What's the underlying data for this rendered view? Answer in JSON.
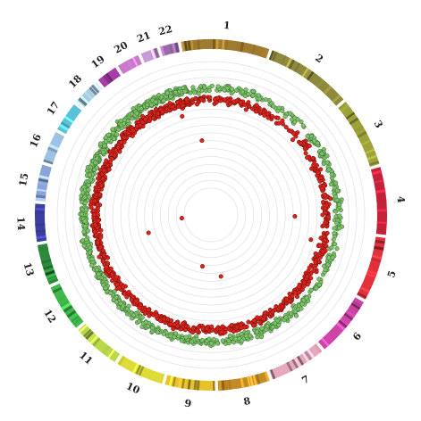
{
  "chart_data": {
    "type": "scatter",
    "title": "",
    "chromosomes": [
      {
        "label": "1",
        "size": 249,
        "color": "#a07a2e"
      },
      {
        "label": "2",
        "size": 243,
        "color": "#8e8a3c"
      },
      {
        "label": "3",
        "size": 198,
        "color": "#9ea23a"
      },
      {
        "label": "4",
        "size": 191,
        "color": "#c2223a"
      },
      {
        "label": "5",
        "size": 181,
        "color": "#e0313d"
      },
      {
        "label": "6",
        "size": 171,
        "color": "#cc44a6"
      },
      {
        "label": "7",
        "size": 159,
        "color": "#e6a9bb"
      },
      {
        "label": "8",
        "size": 146,
        "color": "#c48a24"
      },
      {
        "label": "9",
        "size": 141,
        "color": "#e8c22c"
      },
      {
        "label": "10",
        "size": 136,
        "color": "#dfdc3a"
      },
      {
        "label": "11",
        "size": 135,
        "color": "#b9d94a"
      },
      {
        "label": "12",
        "size": 133,
        "color": "#3fb94c"
      },
      {
        "label": "13",
        "size": 115,
        "color": "#2d8a3a"
      },
      {
        "label": "14",
        "size": 107,
        "color": "#3a3fa0"
      },
      {
        "label": "15",
        "size": 102,
        "color": "#8aa4d8"
      },
      {
        "label": "16",
        "size": 90,
        "color": "#9ec2e6"
      },
      {
        "label": "17",
        "size": 83,
        "color": "#58c3d8"
      },
      {
        "label": "18",
        "size": 78,
        "color": "#a8cce0"
      },
      {
        "label": "19",
        "size": 59,
        "color": "#a83caa"
      },
      {
        "label": "20",
        "size": 63,
        "color": "#c77ac9"
      },
      {
        "label": "21",
        "size": 48,
        "color": "#c89ad6"
      },
      {
        "label": "22",
        "size": 51,
        "color": "#9a6aa8"
      }
    ],
    "series": [
      {
        "name": "",
        "color": "#7fbf6a",
        "stroke": "#2f6b2a",
        "level": 0.79,
        "spread": 0.045
      },
      {
        "name": "",
        "color": "#d8241c",
        "stroke": "#6a0f0b",
        "level": 0.7,
        "spread": 0.045
      }
    ],
    "outliers": [
      {
        "chr": "1",
        "pos": 0.1,
        "level": 0.38
      },
      {
        "chr": "22",
        "pos": 0.1,
        "level": 0.6
      },
      {
        "chr": "9",
        "pos": 0.65,
        "level": 0.2
      },
      {
        "chr": "8",
        "pos": 0.6,
        "level": 0.28
      },
      {
        "chr": "5",
        "pos": 0.3,
        "level": 0.6
      },
      {
        "chr": "4",
        "pos": 0.75,
        "level": 0.45
      },
      {
        "chr": "14",
        "pos": 0.2,
        "level": 0.02
      },
      {
        "chr": "13",
        "pos": 0.55,
        "level": 0.3
      }
    ],
    "ring_count": 16,
    "grid": true,
    "legend": "none"
  }
}
